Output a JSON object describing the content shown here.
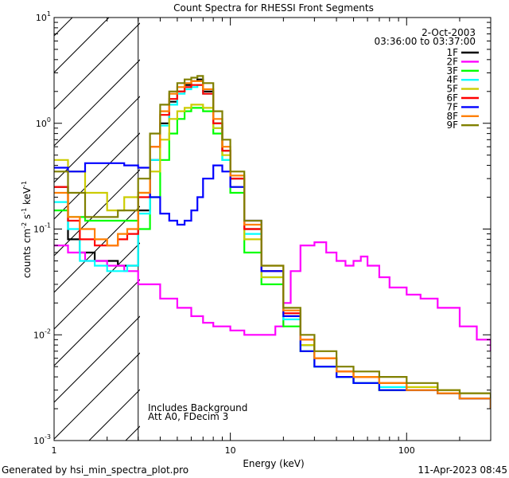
{
  "chart_data": {
    "type": "line",
    "title": "Count Spectra for RHESSI Front Segments",
    "xlabel": "Energy (keV)",
    "ylabel_parts": [
      "counts cm",
      "-2",
      " s",
      "-1",
      " keV",
      "-1"
    ],
    "x_scale": "log",
    "y_scale": "log",
    "xlim": [
      1,
      300
    ],
    "ylim": [
      0.001,
      10
    ],
    "x_ticks": [
      {
        "value": 1,
        "label": "1"
      },
      {
        "value": 10,
        "label": "10"
      },
      {
        "value": 100,
        "label": "100"
      }
    ],
    "y_ticks": [
      {
        "value": 0.001,
        "base": "10",
        "exp": "-3"
      },
      {
        "value": 0.01,
        "base": "10",
        "exp": "-2"
      },
      {
        "value": 0.1,
        "base": "10",
        "exp": "-1"
      },
      {
        "value": 1,
        "base": "10",
        "exp": "0"
      },
      {
        "value": 10,
        "base": "10",
        "exp": "1"
      }
    ],
    "attenuator_edge_kev": 3,
    "date": "2-Oct-2003",
    "time_range": "03:36:00 to 03:37:00",
    "notes": [
      "Includes Background",
      "Att A0, FDecim 3"
    ],
    "footer_left": "Generated by hsi_min_spectra_plot.pro",
    "footer_right": "11-Apr-2023 08:45",
    "series": [
      {
        "name": "1F",
        "color": "#000000",
        "x": [
          1,
          1.2,
          1.4,
          1.7,
          2,
          2.3,
          2.6,
          3,
          3.5,
          4,
          4.5,
          5,
          5.5,
          6,
          6.5,
          7,
          8,
          9,
          10,
          12,
          15,
          20,
          25,
          30,
          40,
          50,
          70,
          100,
          150,
          200,
          300
        ],
        "y": [
          0.25,
          0.08,
          0.06,
          0.05,
          0.05,
          0.045,
          0.045,
          0.15,
          0.45,
          1.0,
          1.6,
          2.0,
          2.3,
          2.5,
          2.6,
          2.0,
          1.0,
          0.55,
          0.3,
          0.1,
          0.04,
          0.015,
          0.008,
          0.005,
          0.004,
          0.0035,
          0.003,
          0.003,
          0.0028,
          0.0025,
          0.002
        ]
      },
      {
        "name": "2F",
        "color": "#ff00ff",
        "x": [
          1,
          1.2,
          1.5,
          2,
          2.5,
          3,
          4,
          5,
          6,
          7,
          8,
          10,
          12,
          15,
          18,
          20,
          22,
          25,
          30,
          35,
          40,
          45,
          50,
          55,
          60,
          70,
          80,
          100,
          120,
          150,
          200,
          250,
          300
        ],
        "y": [
          0.07,
          0.06,
          0.05,
          0.045,
          0.04,
          0.03,
          0.022,
          0.018,
          0.015,
          0.013,
          0.012,
          0.011,
          0.01,
          0.01,
          0.012,
          0.02,
          0.04,
          0.07,
          0.075,
          0.06,
          0.05,
          0.045,
          0.05,
          0.055,
          0.045,
          0.035,
          0.028,
          0.024,
          0.022,
          0.018,
          0.012,
          0.009,
          0.007
        ]
      },
      {
        "name": "3F",
        "color": "#00ff00",
        "x": [
          1,
          1.2,
          1.5,
          2,
          2.5,
          3,
          3.5,
          4,
          4.5,
          5,
          5.5,
          6,
          6.5,
          7,
          8,
          9,
          10,
          12,
          15,
          20,
          25,
          30,
          40,
          50,
          70,
          100,
          150,
          200,
          300
        ],
        "y": [
          0.15,
          0.13,
          0.12,
          0.12,
          0.12,
          0.1,
          0.2,
          0.45,
          0.8,
          1.1,
          1.3,
          1.4,
          1.4,
          1.3,
          0.8,
          0.45,
          0.22,
          0.06,
          0.03,
          0.012,
          0.007,
          0.005,
          0.004,
          0.0035,
          0.003,
          0.003,
          0.0028,
          0.0025,
          0.002
        ]
      },
      {
        "name": "4F",
        "color": "#00ffff",
        "x": [
          1,
          1.2,
          1.4,
          1.7,
          2,
          2.3,
          2.6,
          3,
          3.5,
          4,
          4.5,
          5,
          5.5,
          6,
          6.5,
          7,
          8,
          9,
          10,
          12,
          15,
          20,
          25,
          30,
          40,
          50,
          70,
          100,
          150,
          200,
          300
        ],
        "y": [
          0.18,
          0.1,
          0.05,
          0.045,
          0.04,
          0.04,
          0.045,
          0.14,
          0.45,
          0.95,
          1.5,
          1.9,
          2.1,
          2.2,
          2.3,
          1.9,
          0.9,
          0.45,
          0.25,
          0.09,
          0.035,
          0.014,
          0.008,
          0.005,
          0.004,
          0.0035,
          0.0032,
          0.003,
          0.0028,
          0.0025,
          0.002
        ]
      },
      {
        "name": "5F",
        "color": "#cccc00",
        "x": [
          1,
          1.2,
          1.5,
          2,
          2.5,
          3,
          3.5,
          4,
          4.5,
          5,
          5.5,
          6,
          6.5,
          7,
          8,
          9,
          10,
          12,
          15,
          20,
          25,
          30,
          40,
          50,
          70,
          100,
          150,
          200,
          300
        ],
        "y": [
          0.45,
          0.35,
          0.22,
          0.15,
          0.2,
          0.22,
          0.35,
          0.7,
          1.1,
          1.3,
          1.4,
          1.5,
          1.5,
          1.4,
          0.9,
          0.5,
          0.25,
          0.08,
          0.035,
          0.015,
          0.008,
          0.006,
          0.0045,
          0.004,
          0.0035,
          0.0032,
          0.003,
          0.0028,
          0.0025
        ]
      },
      {
        "name": "6F",
        "color": "#ff0000",
        "x": [
          1,
          1.2,
          1.4,
          1.7,
          2,
          2.3,
          2.6,
          3,
          3.5,
          4,
          4.5,
          5,
          5.5,
          6,
          6.5,
          7,
          8,
          9,
          10,
          12,
          15,
          20,
          25,
          30,
          40,
          50,
          70,
          100,
          150,
          200,
          300
        ],
        "y": [
          0.25,
          0.12,
          0.08,
          0.07,
          0.07,
          0.08,
          0.09,
          0.2,
          0.6,
          1.2,
          1.7,
          2.0,
          2.2,
          2.3,
          2.3,
          1.9,
          1.0,
          0.55,
          0.3,
          0.1,
          0.04,
          0.016,
          0.009,
          0.006,
          0.0045,
          0.004,
          0.0035,
          0.003,
          0.0028,
          0.0025,
          0.002
        ]
      },
      {
        "name": "7F",
        "color": "#0000ff",
        "x": [
          1,
          1.2,
          1.5,
          2,
          2.5,
          3,
          3.5,
          4,
          4.5,
          5,
          5.5,
          6,
          6.5,
          7,
          8,
          9,
          10,
          12,
          15,
          20,
          25,
          30,
          40,
          50,
          70,
          100,
          150,
          200,
          300
        ],
        "y": [
          0.38,
          0.35,
          0.42,
          0.42,
          0.4,
          0.38,
          0.2,
          0.14,
          0.12,
          0.11,
          0.12,
          0.15,
          0.2,
          0.3,
          0.4,
          0.35,
          0.25,
          0.12,
          0.04,
          0.015,
          0.007,
          0.005,
          0.004,
          0.0035,
          0.003,
          0.003,
          0.0028,
          0.0025,
          0.002
        ]
      },
      {
        "name": "8F",
        "color": "#ff7f00",
        "x": [
          1,
          1.2,
          1.4,
          1.7,
          2,
          2.3,
          2.6,
          3,
          3.5,
          4,
          4.5,
          5,
          5.5,
          6,
          6.5,
          7,
          8,
          9,
          10,
          12,
          15,
          20,
          25,
          30,
          40,
          50,
          70,
          100,
          150,
          200,
          300
        ],
        "y": [
          0.22,
          0.13,
          0.1,
          0.08,
          0.07,
          0.09,
          0.1,
          0.22,
          0.6,
          1.3,
          1.9,
          2.2,
          2.4,
          2.5,
          2.5,
          2.1,
          1.1,
          0.6,
          0.32,
          0.11,
          0.045,
          0.017,
          0.009,
          0.006,
          0.0045,
          0.004,
          0.0035,
          0.003,
          0.0028,
          0.0025,
          0.002
        ]
      },
      {
        "name": "9F",
        "color": "#808000",
        "x": [
          1,
          1.2,
          1.5,
          2,
          2.3,
          2.6,
          3,
          3.5,
          4,
          4.5,
          5,
          5.5,
          6,
          6.5,
          7,
          8,
          9,
          10,
          12,
          15,
          20,
          25,
          30,
          40,
          50,
          70,
          100,
          150,
          200,
          300
        ],
        "y": [
          0.35,
          0.22,
          0.13,
          0.13,
          0.15,
          0.15,
          0.3,
          0.8,
          1.5,
          2.0,
          2.4,
          2.6,
          2.7,
          2.8,
          2.4,
          1.3,
          0.7,
          0.35,
          0.12,
          0.045,
          0.018,
          0.01,
          0.007,
          0.005,
          0.0045,
          0.004,
          0.0035,
          0.003,
          0.0028,
          0.0025
        ]
      }
    ]
  }
}
